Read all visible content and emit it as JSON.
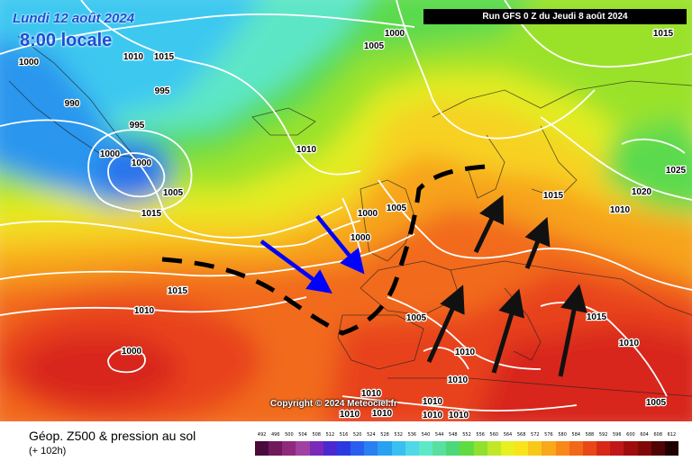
{
  "header": {
    "date": "Lundi 12 août 2024",
    "time": "8:00 locale",
    "run": "Run GFS 0 Z du Jeudi 8 août 2024"
  },
  "copyright": "Copyright © 2024 Meteociel.fr",
  "footer": {
    "field_title": "Géop. Z500 & pression au sol",
    "lead_time": "(+ 102h)"
  },
  "scale": {
    "ticks": [
      "492",
      "496",
      "500",
      "504",
      "508",
      "512",
      "516",
      "520",
      "524",
      "528",
      "532",
      "536",
      "540",
      "544",
      "548",
      "552",
      "556",
      "560",
      "564",
      "568",
      "572",
      "576",
      "580",
      "584",
      "588",
      "592",
      "596",
      "600",
      "604",
      "608",
      "612"
    ],
    "colors": [
      "#4a0a3c",
      "#6e1a5c",
      "#8e2a7c",
      "#a040a0",
      "#7a2ab8",
      "#4a2ad0",
      "#2a3ae0",
      "#2a5ef0",
      "#2a80f0",
      "#2aa0f0",
      "#38c0f0",
      "#50d8e8",
      "#5ee8c8",
      "#58e0a0",
      "#4cd878",
      "#60dc40",
      "#90e030",
      "#c0e828",
      "#e8f020",
      "#f8e418",
      "#f8c818",
      "#f8a818",
      "#f88818",
      "#f06818",
      "#e84818",
      "#d82818",
      "#c01818",
      "#a00c0c",
      "#800808",
      "#500404",
      "#200000"
    ]
  },
  "isobar_labels": [
    {
      "text": "1000"
    },
    {
      "text": "1010"
    },
    {
      "text": "1015"
    },
    {
      "text": "1015"
    },
    {
      "text": "1000"
    },
    {
      "text": "1005"
    },
    {
      "text": "995"
    },
    {
      "text": "990"
    },
    {
      "text": "995"
    },
    {
      "text": "1000"
    },
    {
      "text": "1000"
    },
    {
      "text": "1005"
    },
    {
      "text": "1015"
    },
    {
      "text": "1010"
    },
    {
      "text": "1000"
    },
    {
      "text": "1005"
    },
    {
      "text": "1000"
    },
    {
      "text": "1015"
    },
    {
      "text": "1020"
    },
    {
      "text": "1025"
    },
    {
      "text": "1015"
    },
    {
      "text": "1010"
    },
    {
      "text": "1000"
    },
    {
      "text": "1005"
    },
    {
      "text": "1010"
    },
    {
      "text": "1010"
    },
    {
      "text": "1015"
    },
    {
      "text": "1010"
    },
    {
      "text": "1010"
    },
    {
      "text": "1010"
    },
    {
      "text": "1005"
    },
    {
      "text": "1010"
    },
    {
      "text": "1010"
    },
    {
      "text": "1010"
    },
    {
      "text": "1010"
    },
    {
      "text": "1010"
    }
  ],
  "colors": {
    "isobar": "#ffffff",
    "front": "#000000",
    "arrow_cold": "#0000ff",
    "arrow_warm": "#111111",
    "header_text": "#1a4fd6"
  }
}
